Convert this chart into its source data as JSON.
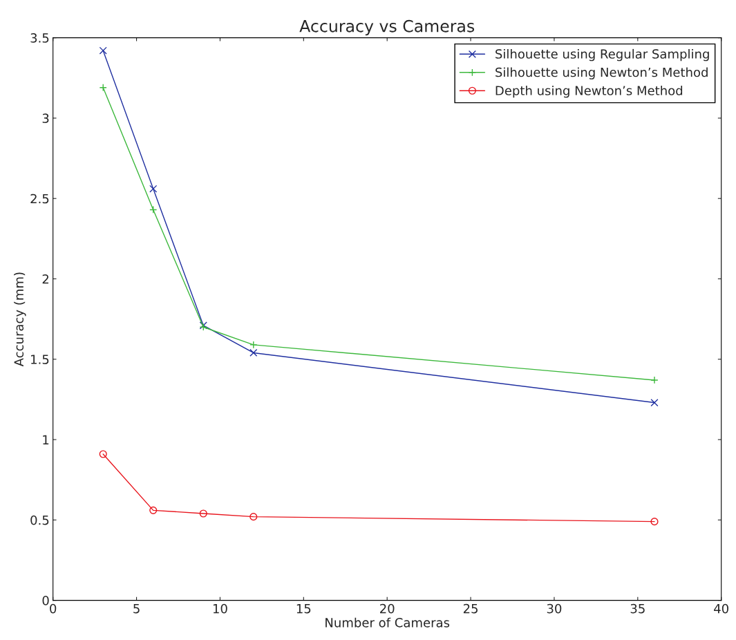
{
  "chart_data": {
    "type": "line",
    "title": "Accuracy vs Cameras",
    "xlabel": "Number of Cameras",
    "ylabel": "Accuracy (mm)",
    "x": [
      3,
      6,
      9,
      12,
      36
    ],
    "series": [
      {
        "name": "Silhouette using Regular Sampling",
        "color": "#1f2fa0",
        "marker": "cross",
        "values": [
          3.42,
          2.56,
          1.71,
          1.54,
          1.23
        ]
      },
      {
        "name": "Silhouette using Newton’s Method",
        "color": "#3cb83c",
        "marker": "plus",
        "values": [
          3.19,
          2.43,
          1.7,
          1.59,
          1.37
        ]
      },
      {
        "name": "Depth using Newton’s Method",
        "color": "#e8141c",
        "marker": "circle",
        "values": [
          0.91,
          0.56,
          0.54,
          0.52,
          0.49
        ]
      }
    ],
    "xlim": [
      0,
      40
    ],
    "xticks": [
      0,
      5,
      10,
      15,
      20,
      25,
      30,
      35,
      40
    ],
    "ylim": [
      0,
      3.5
    ],
    "yticks": [
      0,
      0.5,
      1,
      1.5,
      2,
      2.5,
      3,
      3.5
    ],
    "grid": false,
    "legend": "top right",
    "line_style": "solid"
  }
}
